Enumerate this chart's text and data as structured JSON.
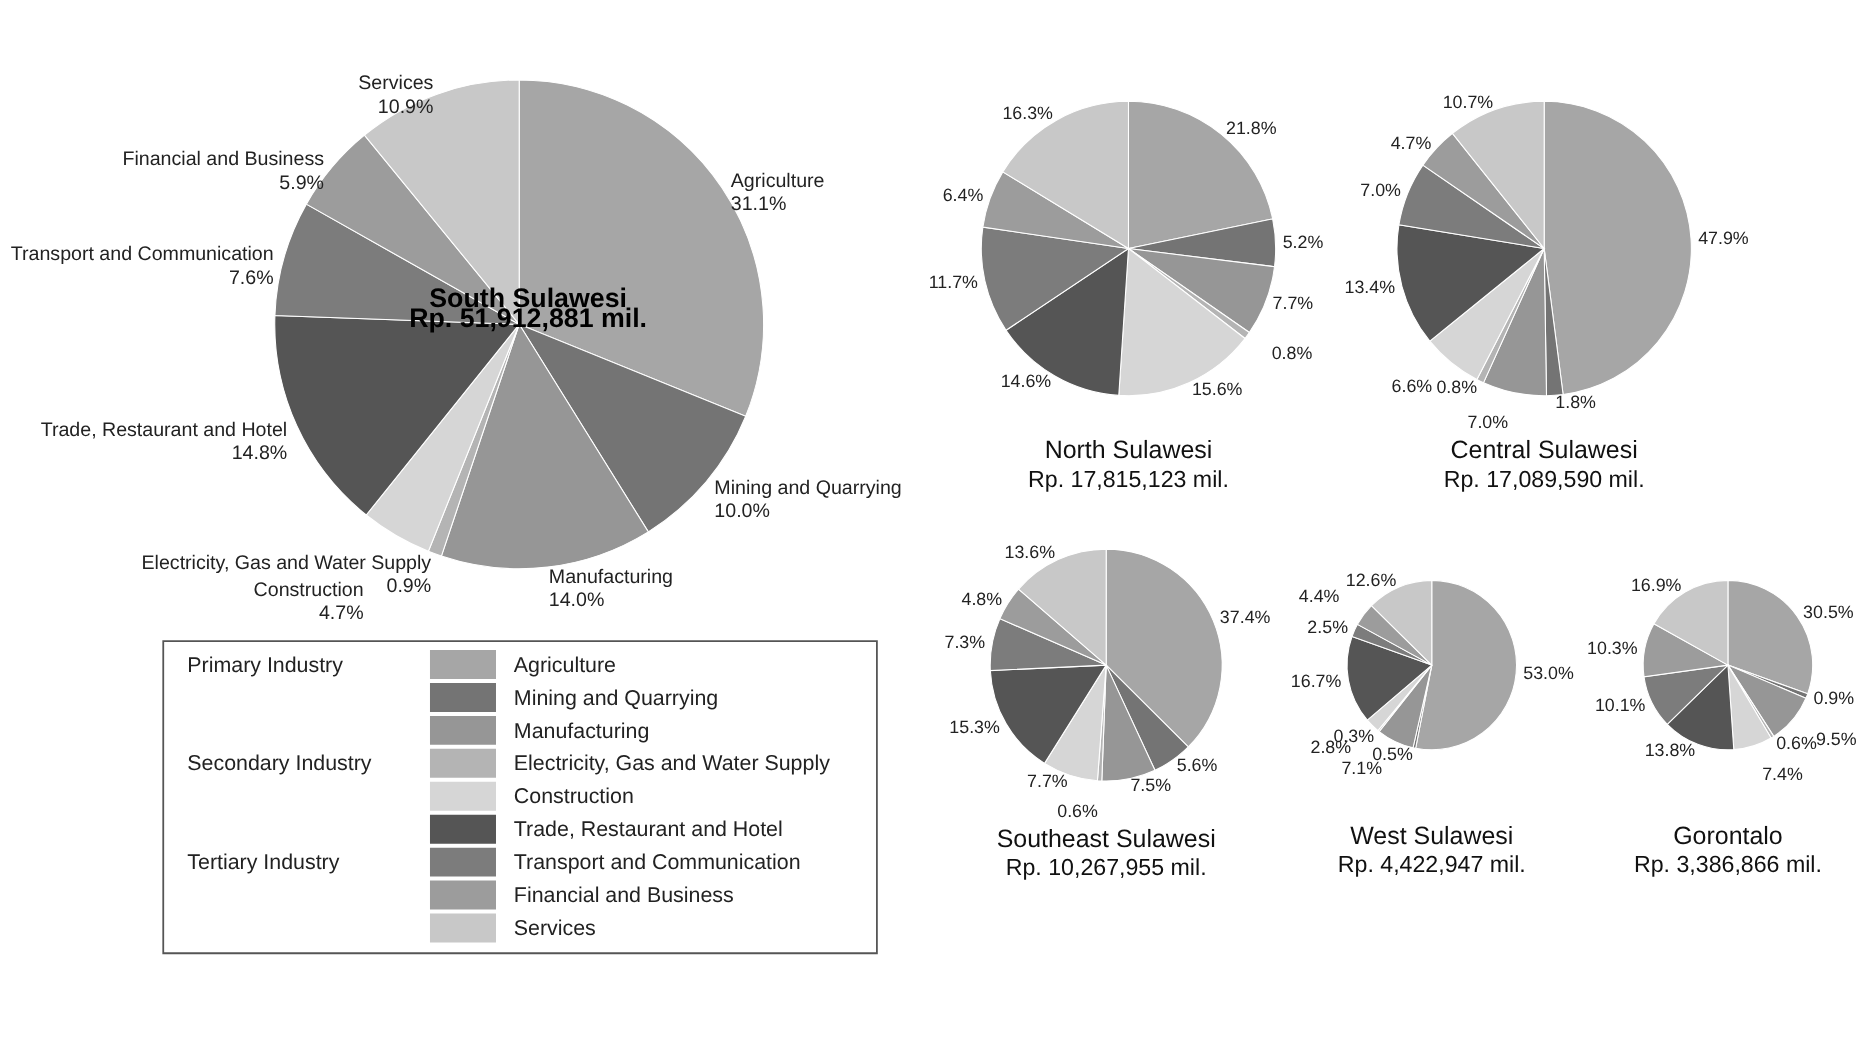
{
  "chart_data": [
    {
      "type": "pie",
      "title": "South Sulawesi",
      "subtitle": "Rp. 51,912,881 mil.",
      "legend": "bottom",
      "annotations": [
        {
          "text": "Primary Industry",
          "y": "Agriculture"
        },
        {
          "text": "Secondary Industry",
          "y": "Electricity, Gas and Water Supply"
        },
        {
          "text": "Tertiary Industry",
          "y": "Transport and Communication"
        }
      ],
      "categories": [
        "Agriculture",
        "Mining and Quarrying",
        "Manufacturing",
        "Electricity, Gas and Water Supply",
        "Construction",
        "Trade, Restaurant and Hotel",
        "Transport and Communication",
        "Financial and Business",
        "Services"
      ],
      "values": [
        31.1,
        10.0,
        14.0,
        0.9,
        4.7,
        14.8,
        7.6,
        5.9,
        10.9
      ],
      "value_labels": [
        "Agriculture\n31.1%",
        "Mining and Quarrying\n10.0%",
        "Manufacturing\n14.0%",
        "Electricity, Gas and Water Supply\n0.9%",
        "Construction\n4.7%",
        "Trade, Restaurant and Hotel\n14.8%",
        "Transport and Communication\n7.6%",
        "Financial and Business\n5.9%",
        "Services\n10.9%"
      ],
      "colors": [
        "#a6a6a6",
        "#747474",
        "#969696",
        "#b4b4b4",
        "#d6d6d6",
        "#555555",
        "#7c7c7c",
        "#9c9c9c",
        "#c8c8c8"
      ]
    },
    {
      "type": "pie",
      "title": "North Sulawesi",
      "subtitle": "Rp. 17,815,123 mil.",
      "categories": [
        null,
        null,
        null,
        null,
        null,
        null,
        null,
        null,
        null
      ],
      "values": [
        21.8,
        5.2,
        7.7,
        0.8,
        15.6,
        14.6,
        11.7,
        6.4,
        16.3
      ],
      "value_labels": [
        "21.8%",
        "5.2%",
        "7.7%",
        "0.8%",
        "15.6%",
        "14.6%",
        "11.7%",
        "6.4%",
        "16.3%"
      ],
      "colors": [
        "#a6a6a6",
        "#747474",
        "#969696",
        "#b4b4b4",
        "#d6d6d6",
        "#555555",
        "#7c7c7c",
        "#9c9c9c",
        "#c8c8c8"
      ]
    },
    {
      "type": "pie",
      "title": "Central Sulawesi",
      "subtitle": "Rp. 17,089,590 mil.",
      "categories": [
        null,
        null,
        null,
        null,
        null,
        null,
        null,
        null,
        null
      ],
      "values": [
        47.9,
        1.8,
        7.0,
        0.8,
        6.6,
        13.4,
        7.0,
        4.7,
        10.7
      ],
      "value_labels": [
        "47.9%",
        "1.8%",
        "7.0%",
        "0.8%",
        "6.6%",
        "13.4%",
        "7.0%",
        "4.7%",
        "10.7%"
      ],
      "colors": [
        "#a6a6a6",
        "#747474",
        "#969696",
        "#b4b4b4",
        "#d6d6d6",
        "#555555",
        "#7c7c7c",
        "#9c9c9c",
        "#c8c8c8"
      ]
    },
    {
      "type": "pie",
      "title": "Southeast Sulawesi",
      "subtitle": "Rp. 10,267,955 mil.",
      "categories": [
        null,
        null,
        null,
        null,
        null,
        null,
        null,
        null,
        null
      ],
      "values": [
        37.4,
        5.6,
        7.5,
        0.6,
        7.7,
        15.3,
        7.3,
        4.8,
        13.6
      ],
      "value_labels": [
        "37.4%",
        "5.6%",
        "7.5%",
        "0.6%",
        "7.7%",
        "15.3%",
        "7.3%",
        "4.8%",
        "13.6%"
      ],
      "colors": [
        "#a6a6a6",
        "#747474",
        "#969696",
        "#b4b4b4",
        "#d6d6d6",
        "#555555",
        "#7c7c7c",
        "#9c9c9c",
        "#c8c8c8"
      ]
    },
    {
      "type": "pie",
      "title": "West Sulawesi",
      "subtitle": "Rp. 4,422,947 mil.",
      "categories": [
        null,
        null,
        null,
        null,
        null,
        null,
        null,
        null,
        null
      ],
      "values": [
        53.0,
        0.5,
        7.1,
        0.3,
        2.8,
        16.7,
        2.5,
        4.4,
        12.6
      ],
      "value_labels": [
        "53.0%",
        "0.5%",
        "7.1%",
        "0.3%",
        "2.8%",
        "16.7%",
        "2.5%",
        "4.4%",
        "12.6%"
      ],
      "colors": [
        "#a6a6a6",
        "#747474",
        "#969696",
        "#b4b4b4",
        "#d6d6d6",
        "#555555",
        "#7c7c7c",
        "#9c9c9c",
        "#c8c8c8"
      ]
    },
    {
      "type": "pie",
      "title": "Gorontalo",
      "subtitle": "Rp. 3,386,866 mil.",
      "categories": [
        null,
        null,
        null,
        null,
        null,
        null,
        null,
        null,
        null
      ],
      "values": [
        30.5,
        0.9,
        9.5,
        0.6,
        7.4,
        13.8,
        10.1,
        10.3,
        16.9
      ],
      "value_labels": [
        "30.5%",
        "0.9%",
        "9.5%",
        "0.6%",
        "7.4%",
        "13.8%",
        "10.1%",
        "10.3%",
        "16.9%"
      ],
      "colors": [
        "#a6a6a6",
        "#747474",
        "#969696",
        "#b4b4b4",
        "#d6d6d6",
        "#555555",
        "#7c7c7c",
        "#9c9c9c",
        "#c8c8c8"
      ]
    }
  ]
}
